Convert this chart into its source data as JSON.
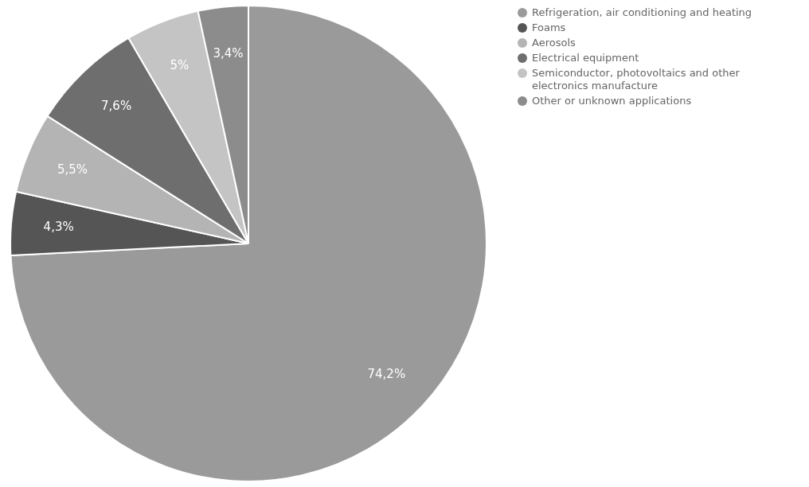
{
  "chart_data": {
    "type": "pie",
    "categories": [
      "Refrigeration, air conditioning and heating",
      "Foams",
      "Aerosols",
      "Electrical equipment",
      "Semiconductor, photovoltaics and other electronics manufacture",
      "Other or unknown applications"
    ],
    "values": [
      74.2,
      4.3,
      5.5,
      7.6,
      5,
      3.4
    ],
    "value_labels": [
      "74,2%",
      "4,3%",
      "5,5%",
      "7,6%",
      "5%",
      "3,4%"
    ],
    "colors": [
      "#9a9a9a",
      "#555555",
      "#b4b4b4",
      "#6e6e6e",
      "#c4c4c4",
      "#8c8c8c"
    ],
    "legend": "top right"
  }
}
